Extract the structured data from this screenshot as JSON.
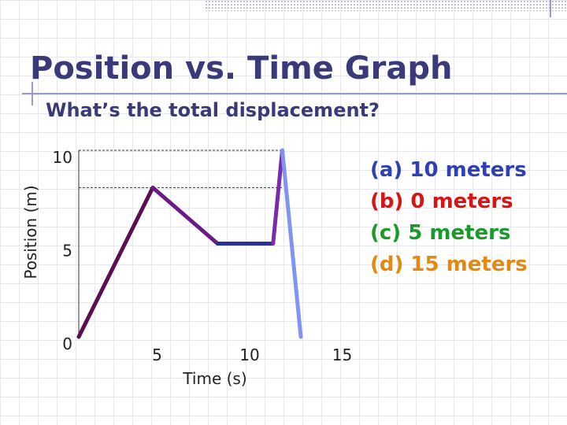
{
  "slide": {
    "title": "Position vs. Time Graph",
    "subtitle": "What’s the total displacement?"
  },
  "answers": [
    {
      "text": "(a) 10 meters",
      "color": "#2f3fb5"
    },
    {
      "text": "(b) 0 meters",
      "color": "#d81515"
    },
    {
      "text": "(c) 5 meters",
      "color": "#1a9a2a"
    },
    {
      "text": "(d) 15 meters",
      "color": "#e08a12"
    }
  ],
  "chart_data": {
    "type": "line",
    "xlabel": "Time (s)",
    "ylabel": "Position (m)",
    "x_ticks": [
      {
        "value": 5,
        "label": "5"
      },
      {
        "value": 10,
        "label": "10"
      },
      {
        "value": 15,
        "label": "15"
      }
    ],
    "y_ticks": [
      {
        "value": 0,
        "label": "0"
      },
      {
        "value": 5,
        "label": "5"
      },
      {
        "value": 10,
        "label": "10"
      }
    ],
    "xlim": [
      0,
      15
    ],
    "ylim": [
      0,
      10
    ],
    "series": [
      {
        "color": "#5a1050",
        "points": [
          [
            0,
            0
          ],
          [
            4,
            8
          ],
          [
            7.5,
            5
          ],
          [
            10.5,
            5
          ],
          [
            11,
            10
          ]
        ],
        "segment_colors": [
          "#5a1050",
          "#6a1b86",
          "#2a2f9a",
          "#7a2aaa"
        ]
      },
      {
        "color": "#7f95f0",
        "points": [
          [
            11,
            10
          ],
          [
            12,
            0
          ]
        ],
        "segment_colors": [
          "#7f95f0"
        ]
      }
    ],
    "reference_lines": [
      10,
      8
    ]
  }
}
